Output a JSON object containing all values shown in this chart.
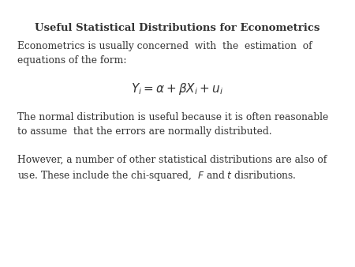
{
  "title": "Useful Statistical Distributions for Econometrics",
  "background_color": "#ffffff",
  "text_color": "#333333",
  "para1_line1": "Econometrics is usually concerned  with  the  estimation  of",
  "para1_line2": "equations of the form:",
  "equation": "$Y_i = \\alpha + \\beta X_i + u_i$",
  "para2_line1": "The normal distribution is useful because it is often reasonable",
  "para2_line2": "to assume  that the errors are normally distributed.",
  "para3_line1": "However, a number of other statistical distributions are also of",
  "para3_line2": "use. These include the chi-squared,  $F$ and $t$ disributions.",
  "font_size_title": 9.5,
  "font_size_body": 8.8,
  "font_size_eq": 11
}
